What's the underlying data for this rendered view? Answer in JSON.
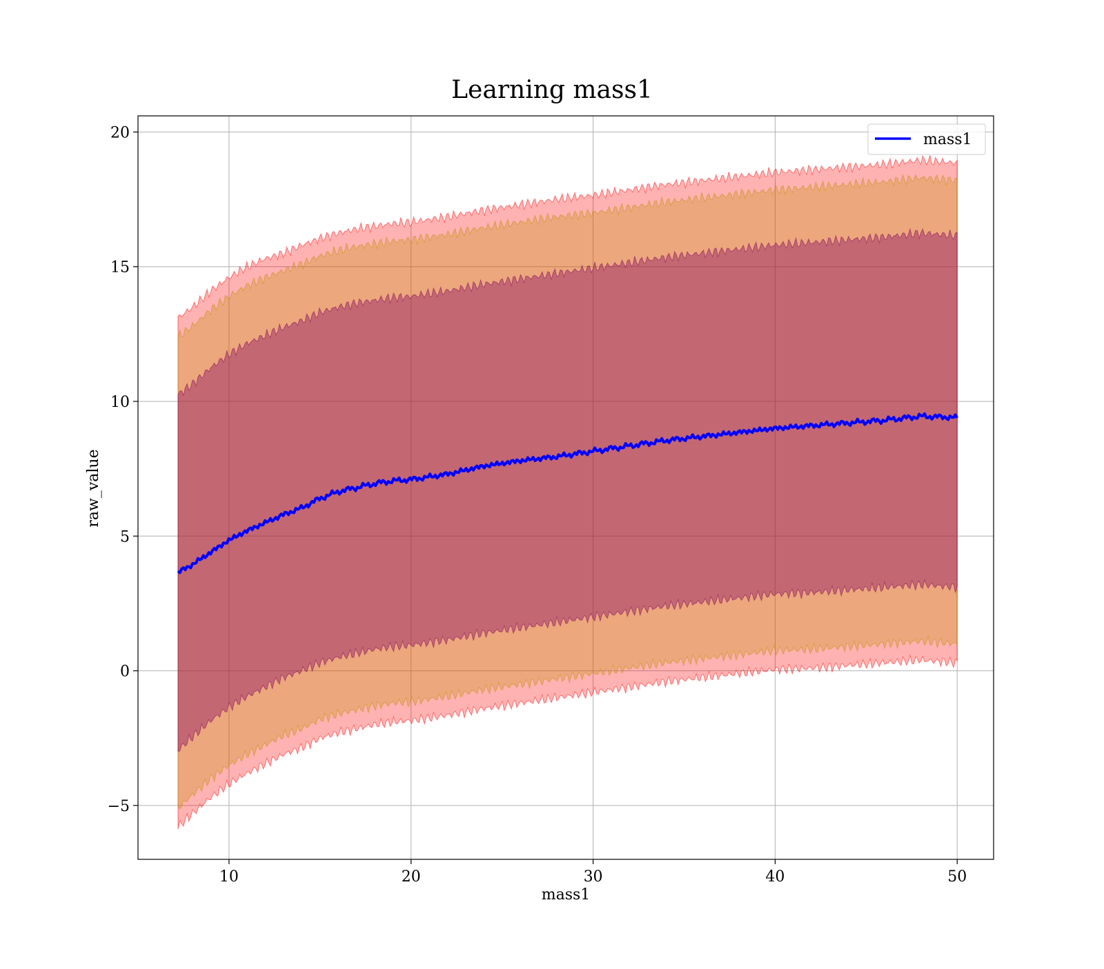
{
  "chart_data": {
    "type": "area",
    "title": "Learning mass1",
    "xlabel": "mass1",
    "ylabel": "raw_value",
    "xlim": [
      5,
      52
    ],
    "ylim": [
      -7,
      20.6
    ],
    "x_ticks": [
      10,
      20,
      30,
      40,
      50
    ],
    "x_tick_labels": [
      "10",
      "20",
      "30",
      "40",
      "50"
    ],
    "y_ticks": [
      -5,
      0,
      5,
      10,
      15,
      20
    ],
    "y_tick_labels": [
      "−5",
      "0",
      "5",
      "10",
      "15",
      "20"
    ],
    "grid": true,
    "legend": {
      "position": "top-right",
      "entries": [
        "mass1"
      ]
    },
    "x": [
      7.2,
      8,
      9,
      10,
      11,
      12,
      13,
      14,
      15,
      16,
      17,
      18,
      19,
      20,
      22,
      24,
      26,
      28,
      30,
      32,
      34,
      36,
      38,
      40,
      42,
      44,
      46,
      48,
      50
    ],
    "series": [
      {
        "name": "mass1",
        "kind": "line",
        "color": "#0000ff",
        "values": [
          3.65,
          3.95,
          4.4,
          4.85,
          5.2,
          5.5,
          5.8,
          6.05,
          6.4,
          6.65,
          6.8,
          6.95,
          7.05,
          7.1,
          7.3,
          7.6,
          7.8,
          7.95,
          8.15,
          8.35,
          8.55,
          8.7,
          8.85,
          9.0,
          9.1,
          9.2,
          9.3,
          9.45,
          9.4
        ]
      },
      {
        "kind": "band",
        "color": "#ff0000",
        "opacity": 0.3,
        "upper": [
          13.1,
          13.5,
          14.1,
          14.6,
          15.0,
          15.3,
          15.5,
          15.8,
          16.05,
          16.25,
          16.4,
          16.5,
          16.6,
          16.65,
          16.85,
          17.1,
          17.3,
          17.5,
          17.65,
          17.85,
          18.05,
          18.2,
          18.35,
          18.5,
          18.6,
          18.7,
          18.8,
          18.95,
          18.85
        ],
        "lower": [
          -5.8,
          -5.3,
          -4.7,
          -4.2,
          -3.8,
          -3.45,
          -3.1,
          -2.85,
          -2.5,
          -2.3,
          -2.15,
          -2.0,
          -1.9,
          -1.85,
          -1.65,
          -1.4,
          -1.2,
          -1.0,
          -0.8,
          -0.6,
          -0.4,
          -0.25,
          -0.1,
          0.05,
          0.1,
          0.2,
          0.3,
          0.4,
          0.3
        ]
      },
      {
        "kind": "band",
        "color": "#c09000",
        "opacity": 0.3,
        "upper": [
          12.4,
          12.8,
          13.4,
          13.9,
          14.3,
          14.6,
          14.85,
          15.1,
          15.4,
          15.6,
          15.75,
          15.85,
          15.95,
          16.0,
          16.2,
          16.45,
          16.65,
          16.85,
          17.0,
          17.2,
          17.4,
          17.55,
          17.7,
          17.85,
          17.95,
          18.05,
          18.15,
          18.3,
          18.2
        ],
        "lower": [
          -5.1,
          -4.6,
          -4.0,
          -3.5,
          -3.1,
          -2.75,
          -2.4,
          -2.15,
          -1.8,
          -1.6,
          -1.45,
          -1.3,
          -1.2,
          -1.15,
          -0.95,
          -0.7,
          -0.5,
          -0.3,
          -0.1,
          0.1,
          0.3,
          0.45,
          0.6,
          0.75,
          0.8,
          0.9,
          1.0,
          1.1,
          1.0
        ]
      },
      {
        "kind": "band",
        "color": "#800060",
        "opacity": 0.38,
        "upper": [
          10.25,
          10.65,
          11.25,
          11.75,
          12.15,
          12.45,
          12.75,
          13.0,
          13.3,
          13.5,
          13.65,
          13.75,
          13.85,
          13.9,
          14.1,
          14.35,
          14.55,
          14.75,
          14.95,
          15.15,
          15.35,
          15.5,
          15.65,
          15.8,
          15.9,
          16.0,
          16.1,
          16.25,
          16.15
        ],
        "lower": [
          -2.95,
          -2.45,
          -1.85,
          -1.35,
          -0.95,
          -0.6,
          -0.25,
          0.0,
          0.3,
          0.5,
          0.65,
          0.8,
          0.9,
          0.95,
          1.15,
          1.4,
          1.6,
          1.8,
          2.0,
          2.2,
          2.4,
          2.55,
          2.7,
          2.85,
          2.9,
          3.0,
          3.1,
          3.2,
          3.1
        ]
      }
    ]
  }
}
